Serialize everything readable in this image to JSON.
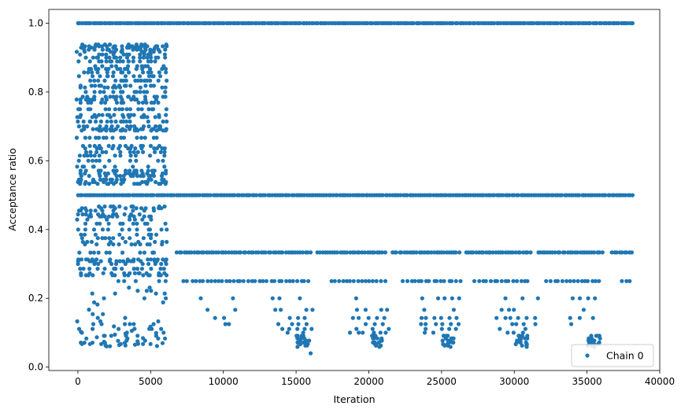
{
  "chart_data": {
    "type": "scatter",
    "title": "",
    "xlabel": "Iteration",
    "ylabel": "Acceptance ratio",
    "xlim": [
      -2000,
      40000
    ],
    "ylim": [
      -0.01,
      1.04
    ],
    "xticks": [
      0,
      5000,
      10000,
      15000,
      20000,
      25000,
      30000,
      35000,
      40000
    ],
    "xtick_labels": [
      "0",
      "5000",
      "10000",
      "15000",
      "20000",
      "25000",
      "30000",
      "35000",
      "40000"
    ],
    "yticks": [
      0.0,
      0.2,
      0.4,
      0.6,
      0.8,
      1.0
    ],
    "ytick_labels": [
      "0.0",
      "0.2",
      "0.4",
      "0.6",
      "0.8",
      "1.0"
    ],
    "grid": false,
    "legend_location": "lower right",
    "color": "#1f77b4",
    "series": [
      {
        "name": "Chain 0",
        "marker": "circle",
        "description_of_pattern": "Iterations 0–6000 show many distinct ratio levels between ~0.06 and ~0.94; afterwards only discrete levels 1.0, 0.5, 0.333, 0.25, 0.2, 0.167, 0.143, 0.125, 0.111, 0.1 and lower in recurring bands",
        "bands": [
          {
            "x_start": 0,
            "x_end": 38200,
            "y": 1.0,
            "density": "solid"
          },
          {
            "x_start": 0,
            "x_end": 38200,
            "y": 0.5,
            "density": "solid"
          },
          {
            "x_start": 6800,
            "x_end": 38200,
            "y": 0.3333,
            "density": "dense",
            "gaps": [
              [
                16100,
                16400
              ],
              [
                21200,
                21500
              ],
              [
                26300,
                26600
              ],
              [
                31200,
                31500
              ],
              [
                36100,
                36700
              ]
            ]
          },
          {
            "x_start": 7300,
            "x_end": 38200,
            "y": 0.25,
            "density": "medium",
            "gaps": [
              [
                16100,
                17400
              ],
              [
                21200,
                22300
              ],
              [
                26300,
                27300
              ],
              [
                31200,
                32200
              ],
              [
                36100,
                37400
              ]
            ]
          },
          {
            "x_start": 8600,
            "x_end": 36000,
            "y": 0.2,
            "density": "sparse"
          },
          {
            "x_start": 8800,
            "x_end": 35800,
            "y": 0.1667,
            "density": "sparse"
          },
          {
            "x_start": 9500,
            "x_end": 35500,
            "y": 0.1429,
            "density": "sparse"
          },
          {
            "x_start": 10000,
            "x_end": 35300,
            "y": 0.125,
            "density": "sparse"
          },
          {
            "x_start": 14000,
            "x_end": 31000,
            "y": 0.1111,
            "density": "sparse"
          },
          {
            "x_start": 14500,
            "x_end": 30800,
            "y": 0.1,
            "density": "sparse"
          }
        ],
        "early_phase": {
          "x_start": 0,
          "x_end": 6000,
          "y_min": 0.04,
          "y_max": 0.94
        },
        "min_point": {
          "x": 16000,
          "y": 0.04
        }
      }
    ]
  }
}
